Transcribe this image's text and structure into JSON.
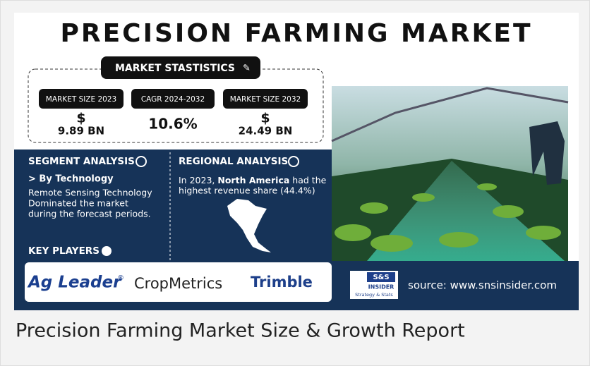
{
  "title": "PRECISION FARMING MARKET",
  "market_statistics": {
    "heading": "MARKET STASTISTICS",
    "items": [
      {
        "label": "MARKET SIZE 2023",
        "currency": "$",
        "value": "9.89 BN"
      },
      {
        "label": "CAGR 2024-2032",
        "value": "10.6%"
      },
      {
        "label": "MARKET SIZE 2032",
        "currency": "$",
        "value": "24.49 BN"
      }
    ]
  },
  "segment_analysis": {
    "heading": "SEGMENT ANALYSIS",
    "subheading": "> By Technology",
    "lines": [
      "Remote Sensing Technology",
      "Dominated the market",
      "during the forecast periods."
    ]
  },
  "regional_analysis": {
    "heading": "REGIONAL ANALYSIS",
    "prefix": "In 2023,",
    "highlight": "North America",
    "suffix": "had the",
    "line2": "highest revenue share (44.4%)"
  },
  "key_players": {
    "heading": "KEY PLAYERS",
    "companies": [
      {
        "name": "Ag Leader",
        "mark": "®"
      },
      {
        "name": "CropMetrics"
      },
      {
        "name": "Trimble"
      }
    ]
  },
  "source": {
    "logo": {
      "name": "S&S",
      "subtitle": "INSIDER",
      "tagline": "Strategy & Stats"
    },
    "text": "source: www.snsinsider.com"
  },
  "caption": "Precision Farming Market Size & Growth Report"
}
